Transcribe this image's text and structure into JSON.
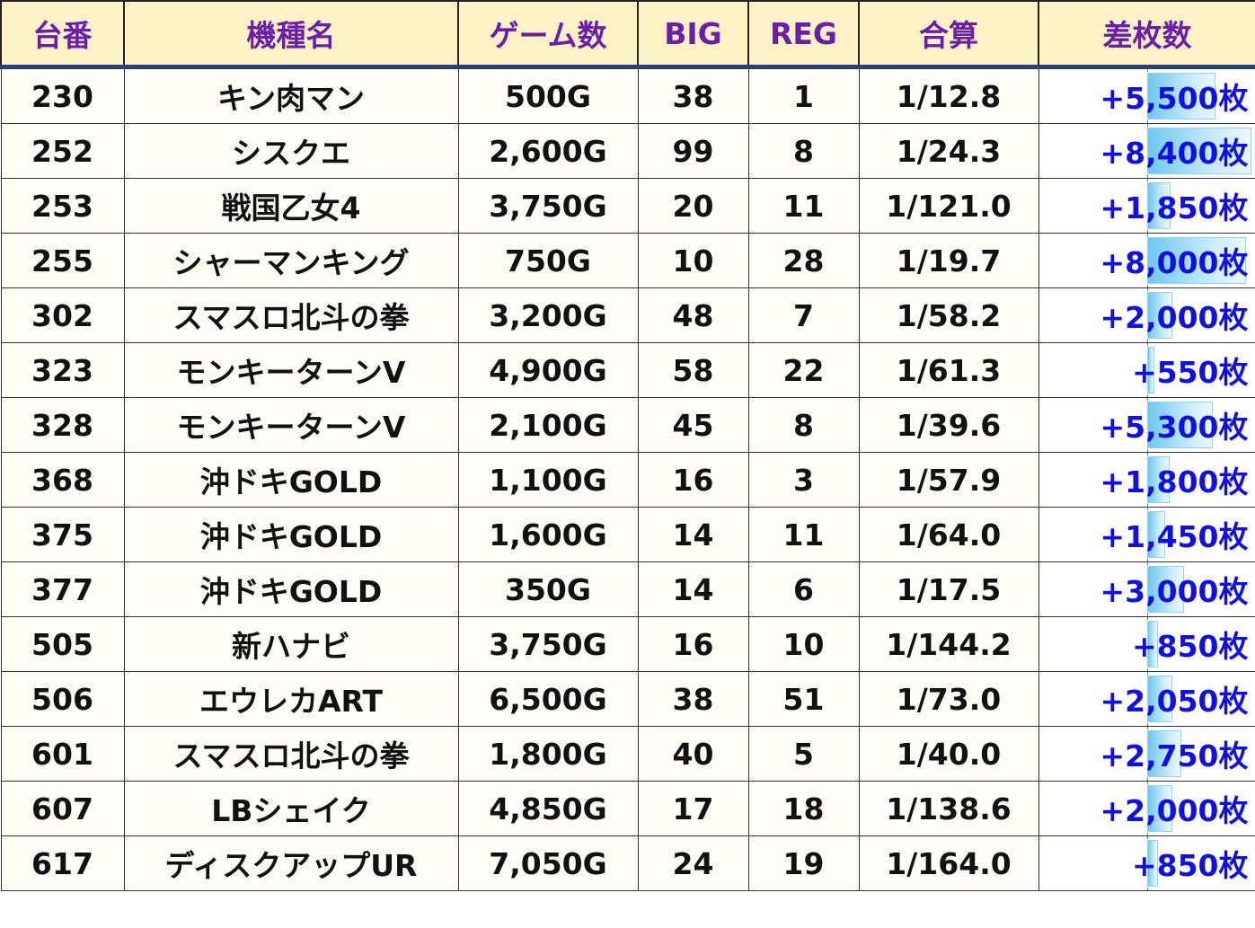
{
  "headers": [
    "台番",
    "機種名",
    "ゲーム数",
    "BIG",
    "REG",
    "合算",
    "差枚数"
  ],
  "max_diff": 8400,
  "rows": [
    {
      "no": "230",
      "name": "キン肉マン",
      "games": "500G",
      "big": "38",
      "reg": "1",
      "combined": "1/12.8",
      "diff": "+5,500枚",
      "diff_value": 5500
    },
    {
      "no": "252",
      "name": "シスクエ",
      "games": "2,600G",
      "big": "99",
      "reg": "8",
      "combined": "1/24.3",
      "diff": "+8,400枚",
      "diff_value": 8400
    },
    {
      "no": "253",
      "name": "戦国乙女4",
      "games": "3,750G",
      "big": "20",
      "reg": "11",
      "combined": "1/121.0",
      "diff": "+1,850枚",
      "diff_value": 1850
    },
    {
      "no": "255",
      "name": "シャーマンキング",
      "games": "750G",
      "big": "10",
      "reg": "28",
      "combined": "1/19.7",
      "diff": "+8,000枚",
      "diff_value": 8000
    },
    {
      "no": "302",
      "name": "スマスロ北斗の拳",
      "games": "3,200G",
      "big": "48",
      "reg": "7",
      "combined": "1/58.2",
      "diff": "+2,000枚",
      "diff_value": 2000
    },
    {
      "no": "323",
      "name": "モンキーターンV",
      "games": "4,900G",
      "big": "58",
      "reg": "22",
      "combined": "1/61.3",
      "diff": "+550枚",
      "diff_value": 550
    },
    {
      "no": "328",
      "name": "モンキーターンV",
      "games": "2,100G",
      "big": "45",
      "reg": "8",
      "combined": "1/39.6",
      "diff": "+5,300枚",
      "diff_value": 5300
    },
    {
      "no": "368",
      "name": "沖ドキGOLD",
      "games": "1,100G",
      "big": "16",
      "reg": "3",
      "combined": "1/57.9",
      "diff": "+1,800枚",
      "diff_value": 1800
    },
    {
      "no": "375",
      "name": "沖ドキGOLD",
      "games": "1,600G",
      "big": "14",
      "reg": "11",
      "combined": "1/64.0",
      "diff": "+1,450枚",
      "diff_value": 1450
    },
    {
      "no": "377",
      "name": "沖ドキGOLD",
      "games": "350G",
      "big": "14",
      "reg": "6",
      "combined": "1/17.5",
      "diff": "+3,000枚",
      "diff_value": 3000
    },
    {
      "no": "505",
      "name": "新ハナビ",
      "games": "3,750G",
      "big": "16",
      "reg": "10",
      "combined": "1/144.2",
      "diff": "+850枚",
      "diff_value": 850
    },
    {
      "no": "506",
      "name": "エウレカART",
      "games": "6,500G",
      "big": "38",
      "reg": "51",
      "combined": "1/73.0",
      "diff": "+2,050枚",
      "diff_value": 2050
    },
    {
      "no": "601",
      "name": "スマスロ北斗の拳",
      "games": "1,800G",
      "big": "40",
      "reg": "5",
      "combined": "1/40.0",
      "diff": "+2,750枚",
      "diff_value": 2750
    },
    {
      "no": "607",
      "name": "LBシェイク",
      "games": "4,850G",
      "big": "17",
      "reg": "18",
      "combined": "1/138.6",
      "diff": "+2,000枚",
      "diff_value": 2000
    },
    {
      "no": "617",
      "name": "ディスクアップUR",
      "games": "7,050G",
      "big": "24",
      "reg": "19",
      "combined": "1/164.0",
      "diff": "+850枚",
      "diff_value": 850
    }
  ]
}
